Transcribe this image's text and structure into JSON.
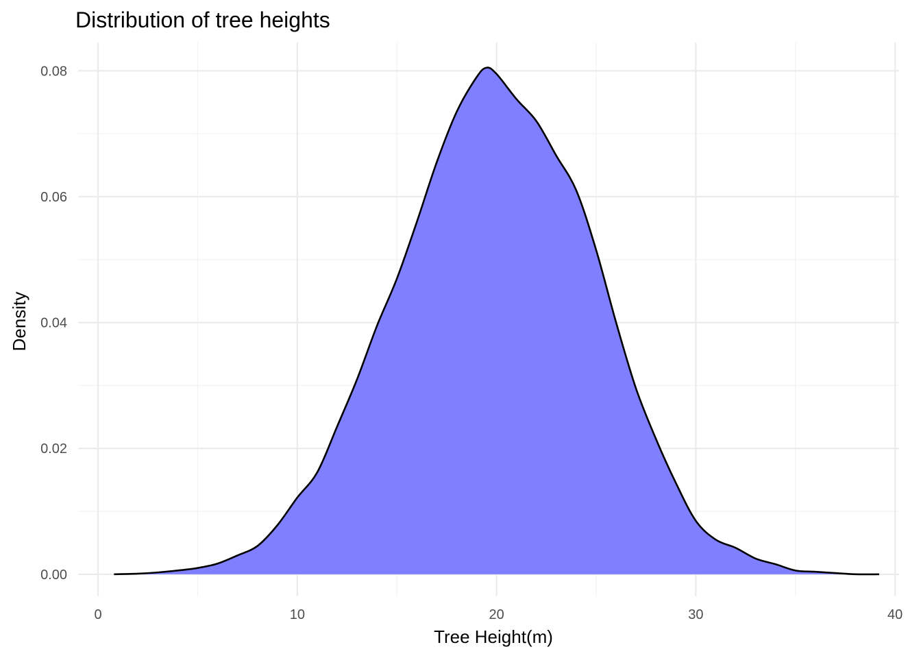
{
  "chart_data": {
    "type": "area",
    "title": "Distribution of tree heights",
    "xlabel": "Tree Height(m)",
    "ylabel": "Density",
    "xlim": [
      -1,
      40.2
    ],
    "ylim": [
      -0.0035,
      0.0845
    ],
    "x_ticks": [
      0,
      10,
      20,
      30,
      40
    ],
    "x_tick_labels": [
      "0",
      "10",
      "20",
      "30",
      "40"
    ],
    "y_ticks": [
      0,
      0.02,
      0.04,
      0.06,
      0.08
    ],
    "y_tick_labels": [
      "0.00",
      "0.02",
      "0.04",
      "0.06",
      "0.08"
    ],
    "grid": true,
    "fill_color": "#7f7fff",
    "line_color": "#000000",
    "series": [
      {
        "x": [
          0.8,
          2,
          3,
          4,
          5,
          6,
          7,
          8,
          9,
          10,
          11,
          12,
          13,
          14,
          15,
          16,
          17,
          18,
          19,
          19.5,
          20,
          21,
          22,
          23,
          24,
          25,
          26,
          27,
          28,
          29,
          30,
          31,
          32,
          33,
          34,
          35,
          36,
          37,
          38,
          39.2
        ],
        "y": [
          0.0,
          0.0001,
          0.0003,
          0.0006,
          0.001,
          0.0017,
          0.003,
          0.0045,
          0.0078,
          0.0122,
          0.0162,
          0.0235,
          0.031,
          0.0395,
          0.047,
          0.056,
          0.0655,
          0.0735,
          0.079,
          0.0805,
          0.0795,
          0.0755,
          0.072,
          0.0665,
          0.061,
          0.0515,
          0.04,
          0.0295,
          0.0215,
          0.0145,
          0.0085,
          0.0055,
          0.0042,
          0.0025,
          0.0016,
          0.0006,
          0.0004,
          0.0002,
          0.0,
          0.0
        ]
      }
    ]
  }
}
